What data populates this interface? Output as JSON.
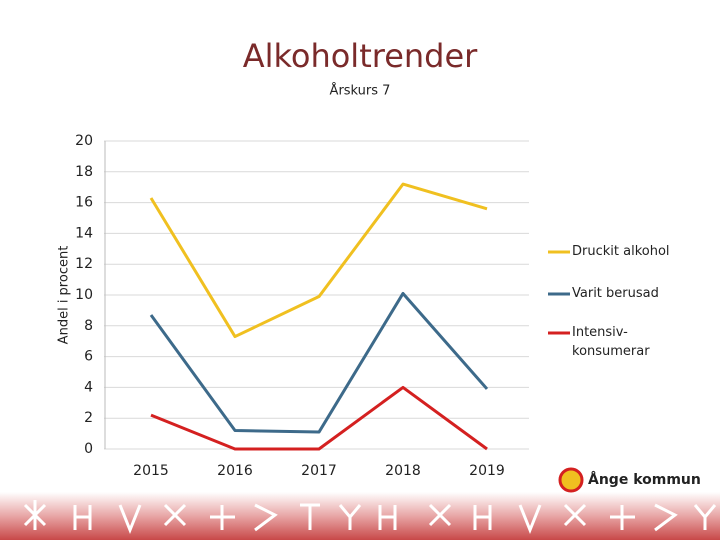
{
  "chart_data": {
    "type": "line",
    "title": "Alkoholtrender",
    "subtitle": "Årskurs 7",
    "y_label": "Andel i procent",
    "categories": [
      "2015",
      "2016",
      "2017",
      "2018",
      "2019"
    ],
    "series": [
      {
        "name": "Druckit alkohol",
        "color": "#f0c020",
        "values": [
          16.3,
          7.3,
          9.9,
          17.2,
          15.6
        ]
      },
      {
        "name": "Varit berusad",
        "color": "#3d6a8a",
        "values": [
          8.7,
          1.2,
          1.1,
          10.1,
          3.9
        ]
      },
      {
        "name": "Intensiv-\nkonsumerar",
        "color": "#d42020",
        "values": [
          2.2,
          0,
          0,
          4.0,
          0
        ]
      }
    ],
    "ylim": [
      0,
      20
    ],
    "yticks": [
      0,
      2,
      4,
      6,
      8,
      10,
      12,
      14,
      16,
      18,
      20
    ],
    "grid": true,
    "legend": "right"
  },
  "footer": {
    "logo": "Ånge kommun"
  }
}
